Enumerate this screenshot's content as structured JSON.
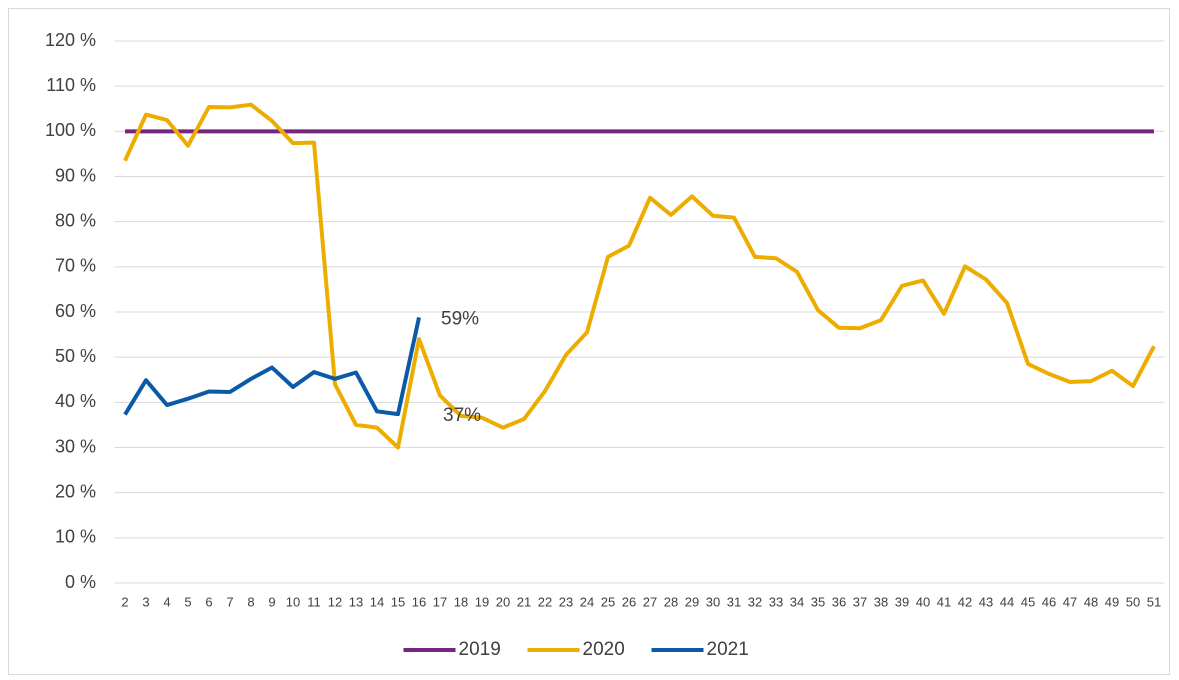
{
  "chart_data": {
    "type": "line",
    "categories": [
      "2",
      "3",
      "4",
      "5",
      "6",
      "7",
      "8",
      "9",
      "10",
      "11",
      "12",
      "13",
      "14",
      "15",
      "16",
      "17",
      "18",
      "19",
      "20",
      "21",
      "22",
      "23",
      "24",
      "25",
      "26",
      "27",
      "28",
      "29",
      "30",
      "31",
      "32",
      "33",
      "34",
      "35",
      "36",
      "37",
      "38",
      "39",
      "40",
      "41",
      "42",
      "43",
      "44",
      "45",
      "46",
      "47",
      "48",
      "49",
      "50",
      "51"
    ],
    "series": [
      {
        "name": "2019",
        "color": "#76267f",
        "values": [
          100,
          100,
          100,
          100,
          100,
          100,
          100,
          100,
          100,
          100,
          100,
          100,
          100,
          100,
          100,
          100,
          100,
          100,
          100,
          100,
          100,
          100,
          100,
          100,
          100,
          100,
          100,
          100,
          100,
          100,
          100,
          100,
          100,
          100,
          100,
          100,
          100,
          100,
          100,
          100,
          100,
          100,
          100,
          100,
          100,
          100,
          100,
          100,
          100,
          100
        ]
      },
      {
        "name": "2020",
        "color": "#ecad00",
        "values": [
          93.5,
          103.7,
          102.5,
          96.8,
          105.4,
          105.3,
          105.9,
          102.3,
          97.4,
          97.5,
          44,
          35,
          34.4,
          30,
          54,
          41.5,
          37,
          36.6,
          34.4,
          36.3,
          42.5,
          50.5,
          55.5,
          72.2,
          74.7,
          85.3,
          81.5,
          85.6,
          81.3,
          80.9,
          72.2,
          71.9,
          68.9,
          60.4,
          56.5,
          56.4,
          58.2,
          65.8,
          67,
          59.6,
          70.1,
          67.2,
          62,
          48.5,
          46.3,
          44.5,
          44.7,
          47,
          43.6,
          52.4
        ]
      },
      {
        "name": "2021",
        "color": "#0b5aa8",
        "values": [
          37.3,
          44.9,
          39.4,
          40.8,
          42.4,
          42.3,
          45.2,
          47.7,
          43.4,
          46.7,
          45.2,
          46.6,
          38,
          37.4,
          58.8,
          null,
          null,
          null,
          null,
          null,
          null,
          null,
          null,
          null,
          null,
          null,
          null,
          null,
          null,
          null,
          null,
          null,
          null,
          null,
          null,
          null,
          null,
          null,
          null,
          null,
          null,
          null,
          null,
          null,
          null,
          null,
          null,
          null,
          null,
          null
        ],
        "value_labels": [
          null,
          null,
          null,
          null,
          null,
          null,
          null,
          null,
          null,
          null,
          null,
          null,
          null,
          "37%",
          "59%",
          null,
          null,
          null,
          null,
          null,
          null,
          null,
          null,
          null,
          null,
          null,
          null,
          null,
          null,
          null,
          null,
          null,
          null,
          null,
          null,
          null,
          null,
          null,
          null,
          null,
          null,
          null,
          null,
          null,
          null,
          null,
          null,
          null,
          null,
          null
        ]
      }
    ],
    "ylim": [
      0,
      120
    ],
    "yticks": [
      {
        "value": 0,
        "label": "0 %"
      },
      {
        "value": 10,
        "label": "10 %"
      },
      {
        "value": 20,
        "label": "20 %"
      },
      {
        "value": 30,
        "label": "30 %"
      },
      {
        "value": 40,
        "label": "40 %"
      },
      {
        "value": 50,
        "label": "50 %"
      },
      {
        "value": 60,
        "label": "60 %"
      },
      {
        "value": 70,
        "label": "70 %"
      },
      {
        "value": 80,
        "label": "80 %"
      },
      {
        "value": 90,
        "label": "90 %"
      },
      {
        "value": 100,
        "label": "100 %"
      },
      {
        "value": 110,
        "label": "110 %"
      },
      {
        "value": 120,
        "label": "120 %"
      }
    ],
    "grid": true,
    "legend": "bottom"
  }
}
